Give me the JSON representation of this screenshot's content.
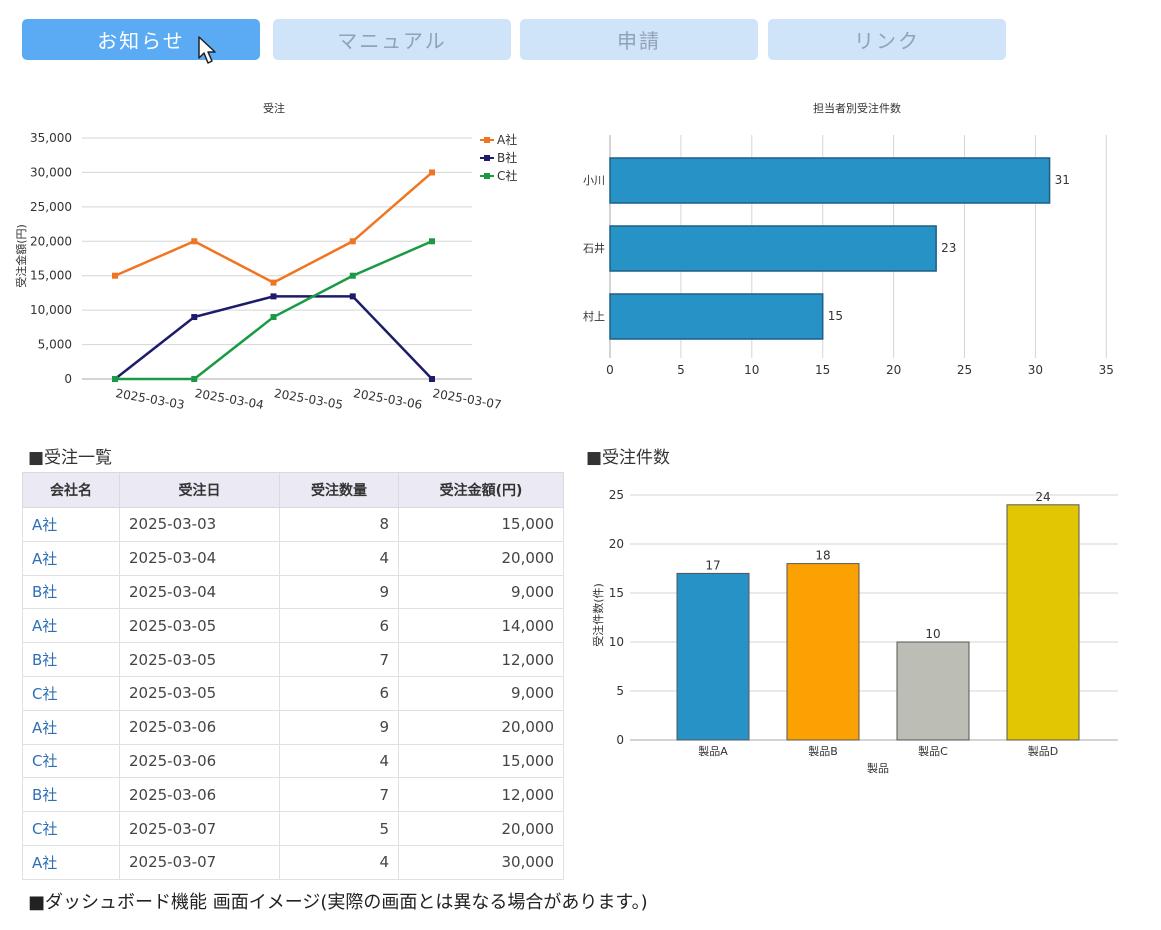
{
  "tabs": [
    {
      "label": "お知らせ",
      "active": true
    },
    {
      "label": "マニュアル",
      "active": false
    },
    {
      "label": "申請",
      "active": false
    },
    {
      "label": "リンク",
      "active": false
    }
  ],
  "order_chart": {
    "title": "受注",
    "ylabel": "受注金額(円)",
    "ytick_labels": [
      "0",
      "5,000",
      "10,000",
      "15,000",
      "20,000",
      "25,000",
      "30,000",
      "35,000"
    ]
  },
  "staff_chart": {
    "title": "担当者別受注件数",
    "xtick_labels": [
      "0",
      "5",
      "10",
      "15",
      "20",
      "25",
      "30",
      "35"
    ]
  },
  "table_section": {
    "title": "■受注一覧",
    "headers": [
      "会社名",
      "受注日",
      "受注数量",
      "受注金額(円)"
    ],
    "rows": [
      [
        "A社",
        "2025-03-03",
        "8",
        "15,000"
      ],
      [
        "A社",
        "2025-03-04",
        "4",
        "20,000"
      ],
      [
        "B社",
        "2025-03-04",
        "9",
        "9,000"
      ],
      [
        "A社",
        "2025-03-05",
        "6",
        "14,000"
      ],
      [
        "B社",
        "2025-03-05",
        "7",
        "12,000"
      ],
      [
        "C社",
        "2025-03-05",
        "6",
        "9,000"
      ],
      [
        "A社",
        "2025-03-06",
        "9",
        "20,000"
      ],
      [
        "C社",
        "2025-03-06",
        "4",
        "15,000"
      ],
      [
        "B社",
        "2025-03-06",
        "7",
        "12,000"
      ],
      [
        "C社",
        "2025-03-07",
        "5",
        "20,000"
      ],
      [
        "A社",
        "2025-03-07",
        "4",
        "30,000"
      ]
    ]
  },
  "count_section": {
    "title": "■受注件数",
    "ylabel": "受注件数(件)",
    "xlabel": "製品",
    "ytick_labels": [
      "0",
      "5",
      "10",
      "15",
      "20",
      "25"
    ]
  },
  "caption": "■ダッシュボード機能 画面イメージ(実際の画面とは異なる場合があります。)",
  "icons": {
    "cursor": "mouse-pointer-icon"
  },
  "chart_data": [
    {
      "type": "line",
      "title": "受注",
      "ylabel": "受注金額(円)",
      "xlabel": "",
      "x": [
        "2025-03-03",
        "2025-03-04",
        "2025-03-05",
        "2025-03-06",
        "2025-03-07"
      ],
      "ylim": [
        0,
        35000
      ],
      "grid": true,
      "legend": "top-right",
      "series": [
        {
          "name": "A社",
          "color": "#f07522",
          "values": [
            15000,
            20000,
            14000,
            20000,
            30000
          ]
        },
        {
          "name": "B社",
          "color": "#1c1c6b",
          "values": [
            0,
            9000,
            12000,
            12000,
            0
          ]
        },
        {
          "name": "C社",
          "color": "#1a9a44",
          "values": [
            0,
            0,
            9000,
            15000,
            20000
          ]
        }
      ]
    },
    {
      "type": "bar",
      "orientation": "horizontal",
      "title": "担当者別受注件数",
      "categories": [
        "小川",
        "石井",
        "村上"
      ],
      "values": [
        31,
        23,
        15
      ],
      "xlim": [
        0,
        35
      ],
      "color": "#2792c5",
      "grid": true
    },
    {
      "type": "bar",
      "title": "",
      "xlabel": "製品",
      "ylabel": "受注件数(件)",
      "categories": [
        "製品A",
        "製品B",
        "製品C",
        "製品D"
      ],
      "values": [
        17,
        18,
        10,
        24
      ],
      "colors": [
        "#2792c5",
        "#fba202",
        "#bcbdb5",
        "#e2c603"
      ],
      "ylim": [
        0,
        25
      ],
      "grid": true
    }
  ]
}
